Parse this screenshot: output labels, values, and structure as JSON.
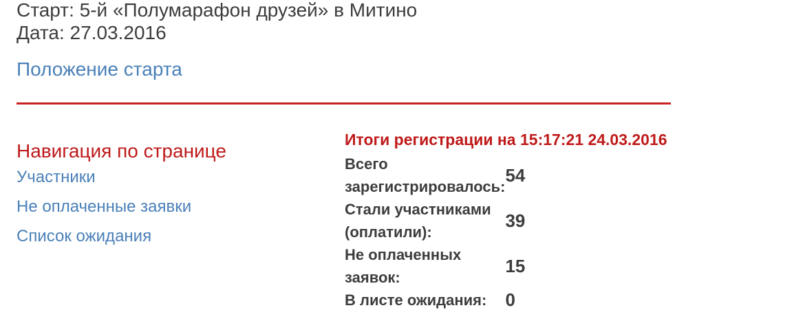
{
  "header": {
    "title_line1": "Старт: 5-й «Полумарафон друзей» в Митино",
    "title_line2": "Дата: 27.03.2016",
    "regulations_link": "Положение старта"
  },
  "nav": {
    "heading": "Навигация по странице",
    "links": [
      {
        "label": "Участники"
      },
      {
        "label": "Не оплаченные заявки"
      },
      {
        "label": "Список ожидания"
      }
    ]
  },
  "results": {
    "heading": "Итоги регистрации на 15:17:21 24.03.2016",
    "rows": [
      {
        "label": "Всего зарегистрировалось:",
        "value": "54"
      },
      {
        "label": "Стали участниками (оплатили):",
        "value": "39"
      },
      {
        "label": "Не оплаченных заявок:",
        "value": "15"
      },
      {
        "label": "В листе ожидания:",
        "value": "0"
      }
    ]
  },
  "colors": {
    "text_dark": "#3d3d3d",
    "link_blue": "#4a80b8",
    "heading_red": "#bf1a1a",
    "divider_red": "#c92121"
  }
}
